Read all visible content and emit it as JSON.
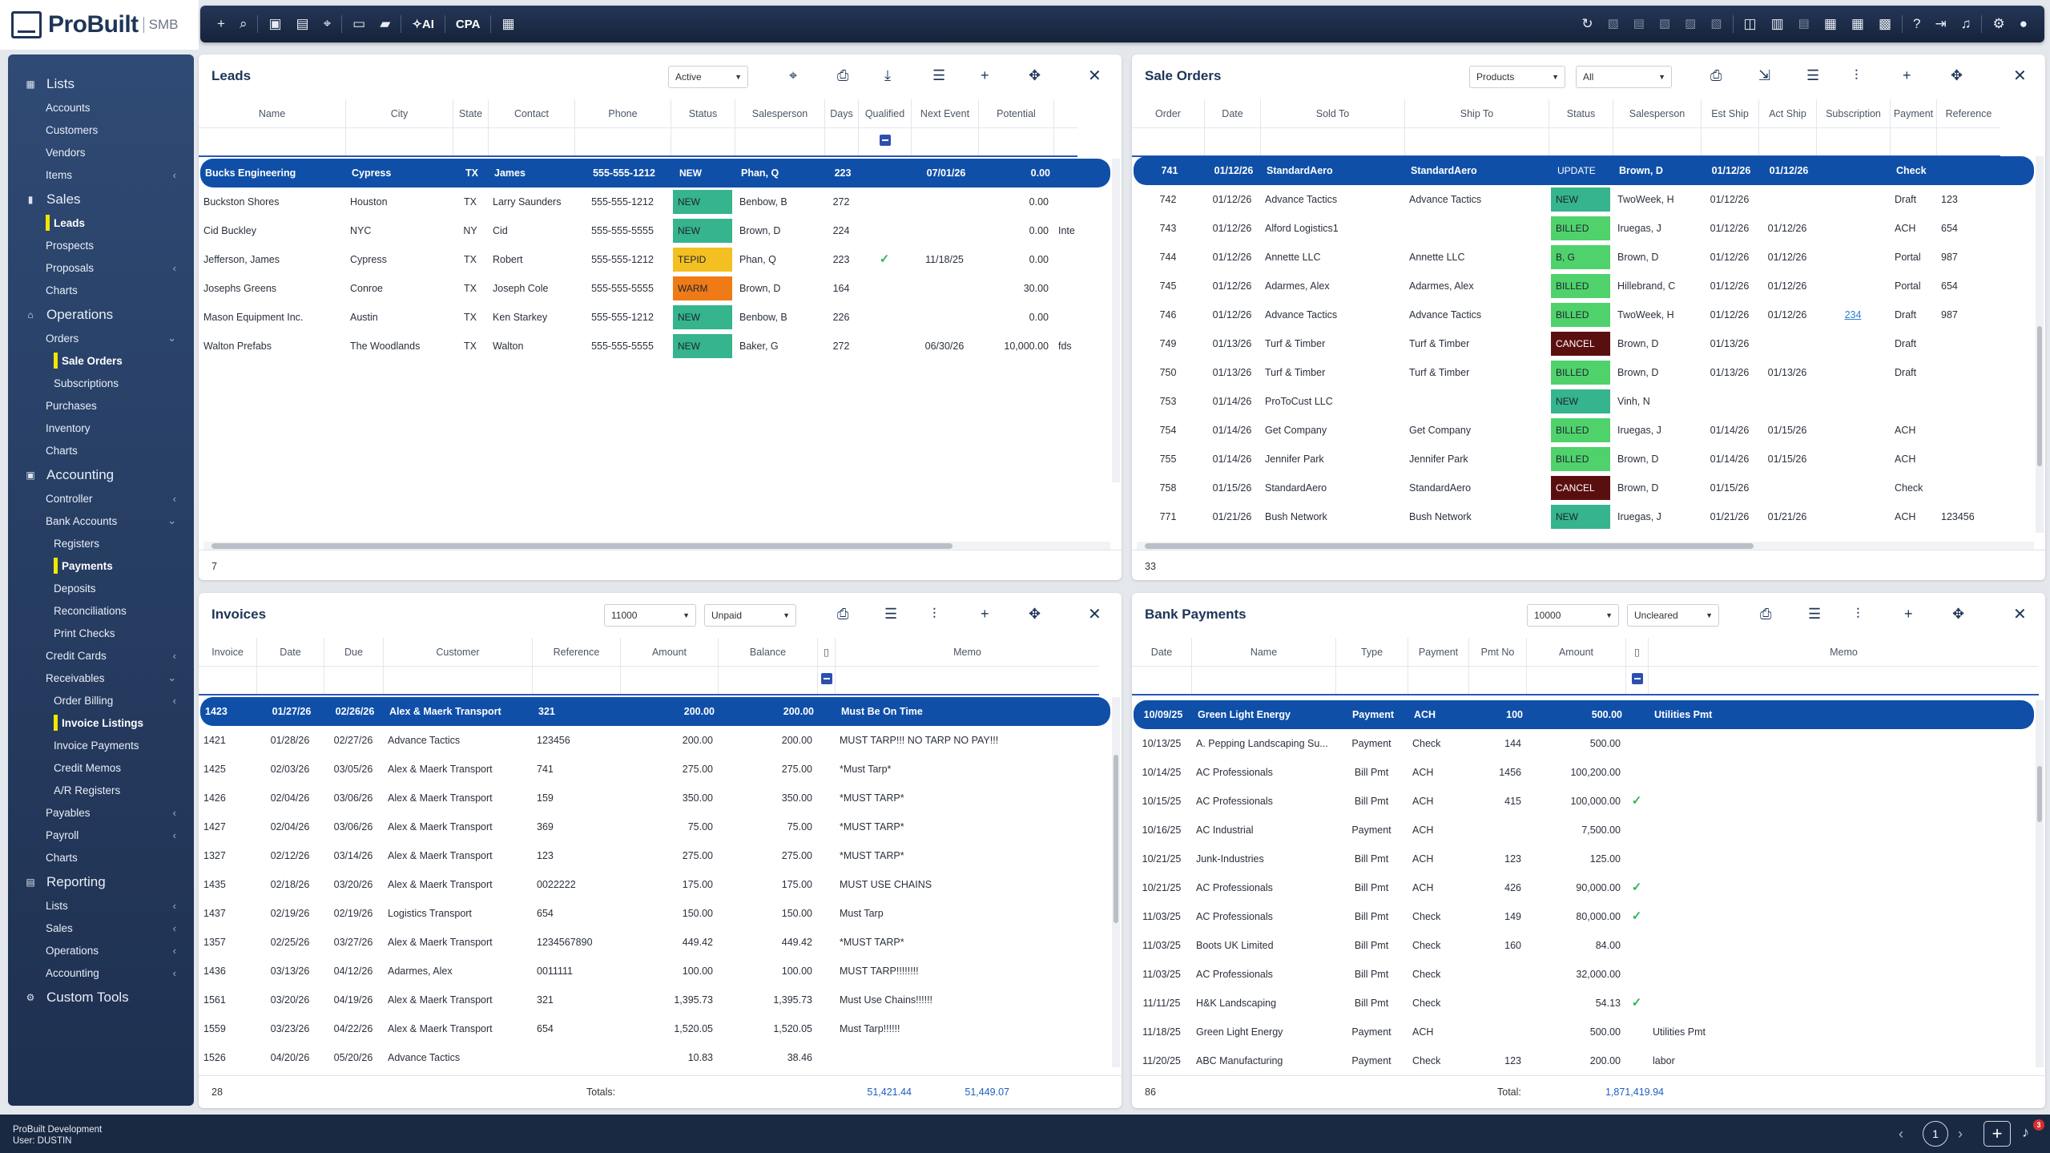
{
  "app": {
    "logo_text": "ProBuilt",
    "logo_suffix": "SMB",
    "footer_line1": "ProBuilt Development",
    "footer_line2": "User: DUSTIN",
    "page": "1",
    "notifications": "3"
  },
  "topbar": {
    "ai_label": "AI",
    "cpa_label": "CPA"
  },
  "sidebar": [
    {
      "label": "Lists",
      "level": "h",
      "icon": "▦",
      "chevron": ""
    },
    {
      "label": "Accounts",
      "level": "1",
      "chevron": ""
    },
    {
      "label": "Customers",
      "level": "1",
      "chevron": ""
    },
    {
      "label": "Vendors",
      "level": "1",
      "chevron": ""
    },
    {
      "label": "Items",
      "level": "1",
      "chevron": "‹"
    },
    {
      "label": "Sales",
      "level": "h",
      "icon": "▮",
      "chevron": ""
    },
    {
      "label": "Leads",
      "level": "1",
      "chevron": "",
      "active": true
    },
    {
      "label": "Prospects",
      "level": "1",
      "chevron": ""
    },
    {
      "label": "Proposals",
      "level": "1",
      "chevron": "‹"
    },
    {
      "label": "Charts",
      "level": "1",
      "chevron": ""
    },
    {
      "label": "Operations",
      "level": "h",
      "icon": "⌂",
      "chevron": ""
    },
    {
      "label": "Orders",
      "level": "1",
      "chevron": "⌄"
    },
    {
      "label": "Sale Orders",
      "level": "2",
      "chevron": "",
      "active": true
    },
    {
      "label": "Subscriptions",
      "level": "2",
      "chevron": ""
    },
    {
      "label": "Purchases",
      "level": "1",
      "chevron": ""
    },
    {
      "label": "Inventory",
      "level": "1",
      "chevron": ""
    },
    {
      "label": "Charts",
      "level": "1",
      "chevron": ""
    },
    {
      "label": "Accounting",
      "level": "h",
      "icon": "▣",
      "chevron": ""
    },
    {
      "label": "Controller",
      "level": "1",
      "chevron": "‹"
    },
    {
      "label": "Bank Accounts",
      "level": "1",
      "chevron": "⌄"
    },
    {
      "label": "Registers",
      "level": "2",
      "chevron": ""
    },
    {
      "label": "Payments",
      "level": "2",
      "chevron": "",
      "active": true
    },
    {
      "label": "Deposits",
      "level": "2",
      "chevron": ""
    },
    {
      "label": "Reconciliations",
      "level": "2",
      "chevron": ""
    },
    {
      "label": "Print Checks",
      "level": "2",
      "chevron": ""
    },
    {
      "label": "Credit Cards",
      "level": "1",
      "chevron": "‹"
    },
    {
      "label": "Receivables",
      "level": "1",
      "chevron": "⌄"
    },
    {
      "label": "Order Billing",
      "level": "2",
      "chevron": "‹"
    },
    {
      "label": "Invoice Listings",
      "level": "2",
      "chevron": "",
      "active": true
    },
    {
      "label": "Invoice Payments",
      "level": "2",
      "chevron": ""
    },
    {
      "label": "Credit Memos",
      "level": "2",
      "chevron": ""
    },
    {
      "label": "A/R Registers",
      "level": "2",
      "chevron": ""
    },
    {
      "label": "Payables",
      "level": "1",
      "chevron": "‹"
    },
    {
      "label": "Payroll",
      "level": "1",
      "chevron": "‹"
    },
    {
      "label": "Charts",
      "level": "1",
      "chevron": ""
    },
    {
      "label": "Reporting",
      "level": "h",
      "icon": "▤",
      "chevron": ""
    },
    {
      "label": "Lists",
      "level": "1",
      "chevron": "‹"
    },
    {
      "label": "Sales",
      "level": "1",
      "chevron": "‹"
    },
    {
      "label": "Operations",
      "level": "1",
      "chevron": "‹"
    },
    {
      "label": "Accounting",
      "level": "1",
      "chevron": "‹"
    },
    {
      "label": "Custom Tools",
      "level": "h",
      "icon": "⚙",
      "chevron": ""
    }
  ],
  "leads": {
    "title": "Leads",
    "filter": "Active",
    "count": "7",
    "columns": [
      "Name",
      "City",
      "State",
      "Contact",
      "Phone",
      "Status",
      "Salesperson",
      "Days",
      "Qualified",
      "Next Event",
      "Potential"
    ],
    "rows": [
      [
        "Bucks Engineering",
        "Cypress",
        "TX",
        "James",
        "555-555-1212",
        "NEW",
        "Phan, Q",
        "223",
        "",
        "07/01/26",
        "0.00",
        ""
      ],
      [
        "Buckston Shores",
        "Houston",
        "TX",
        "Larry Saunders",
        "555-555-1212",
        "NEW",
        "Benbow, B",
        "272",
        "",
        "",
        "0.00",
        ""
      ],
      [
        "Cid Buckley",
        "NYC",
        "NY",
        "Cid",
        "555-555-5555",
        "NEW",
        "Brown, D",
        "224",
        "",
        "",
        "0.00",
        "Inte"
      ],
      [
        "Jefferson, James",
        "Cypress",
        "TX",
        "Robert",
        "555-555-1212",
        "TEPID",
        "Phan, Q",
        "223",
        "✓",
        "11/18/25",
        "0.00",
        ""
      ],
      [
        "Josephs Greens",
        "Conroe",
        "TX",
        "Joseph Cole",
        "555-555-5555",
        "WARM",
        "Brown, D",
        "164",
        "",
        "",
        "30.00",
        ""
      ],
      [
        "Mason Equipment Inc.",
        "Austin",
        "TX",
        "Ken Starkey",
        "555-555-1212",
        "NEW",
        "Benbow, B",
        "226",
        "",
        "",
        "0.00",
        ""
      ],
      [
        "Walton Prefabs",
        "The Woodlands",
        "TX",
        "Walton",
        "555-555-5555",
        "NEW",
        "Baker, G",
        "272",
        "",
        "06/30/26",
        "10,000.00",
        "fds"
      ]
    ]
  },
  "sale_orders": {
    "title": "Sale Orders",
    "filter1": "Products",
    "filter2": "All",
    "count": "33",
    "columns": [
      "Order",
      "Date",
      "Sold To",
      "Ship To",
      "Status",
      "Salesperson",
      "Est Ship",
      "Act Ship",
      "Subscription",
      "Payment",
      "Reference"
    ],
    "rows": [
      [
        "741",
        "01/12/26",
        "StandardAero",
        "StandardAero",
        "UPDATE",
        "Brown, D",
        "01/12/26",
        "01/12/26",
        "",
        "Check",
        ""
      ],
      [
        "742",
        "01/12/26",
        "Advance Tactics",
        "Advance Tactics",
        "NEW",
        "TwoWeek, H",
        "01/12/26",
        "",
        "",
        "Draft",
        "123"
      ],
      [
        "743",
        "01/12/26",
        "Alford Logistics1",
        "",
        "BILLED",
        "Iruegas, J",
        "01/12/26",
        "01/12/26",
        "",
        "ACH",
        "654"
      ],
      [
        "744",
        "01/12/26",
        "Annette LLC",
        "Annette LLC",
        "B, G",
        "Brown, D",
        "01/12/26",
        "01/12/26",
        "",
        "Portal",
        "987"
      ],
      [
        "745",
        "01/12/26",
        "Adarmes, Alex",
        "Adarmes, Alex",
        "BILLED",
        "Hillebrand, C",
        "01/12/26",
        "01/12/26",
        "",
        "Portal",
        "654"
      ],
      [
        "746",
        "01/12/26",
        "Advance Tactics",
        "Advance Tactics",
        "BILLED",
        "TwoWeek, H",
        "01/12/26",
        "01/12/26",
        "234",
        "Draft",
        "987"
      ],
      [
        "749",
        "01/13/26",
        "Turf & Timber",
        "Turf & Timber",
        "CANCEL",
        "Brown, D",
        "01/13/26",
        "",
        "",
        "Draft",
        ""
      ],
      [
        "750",
        "01/13/26",
        "Turf & Timber",
        "Turf & Timber",
        "BILLED",
        "Brown, D",
        "01/13/26",
        "01/13/26",
        "",
        "Draft",
        ""
      ],
      [
        "753",
        "01/14/26",
        "ProToCust LLC",
        "",
        "NEW",
        "Vinh, N",
        "",
        "",
        "",
        "",
        ""
      ],
      [
        "754",
        "01/14/26",
        "Get Company",
        "Get Company",
        "BILLED",
        "Iruegas, J",
        "01/14/26",
        "01/15/26",
        "",
        "ACH",
        ""
      ],
      [
        "755",
        "01/14/26",
        "Jennifer Park",
        "Jennifer Park",
        "BILLED",
        "Brown, D",
        "01/14/26",
        "01/15/26",
        "",
        "ACH",
        ""
      ],
      [
        "758",
        "01/15/26",
        "StandardAero",
        "StandardAero",
        "CANCEL",
        "Brown, D",
        "01/15/26",
        "",
        "",
        "Check",
        ""
      ],
      [
        "771",
        "01/21/26",
        "Bush Network",
        "Bush Network",
        "NEW",
        "Iruegas, J",
        "01/21/26",
        "01/21/26",
        "",
        "ACH",
        "123456"
      ]
    ]
  },
  "invoices": {
    "title": "Invoices",
    "filter1": "11000",
    "filter2": "Unpaid",
    "count": "28",
    "totals_label": "Totals:",
    "total_amount": "51,421.44",
    "total_balance": "51,449.07",
    "columns": [
      "Invoice",
      "Date",
      "Due",
      "Customer",
      "Reference",
      "Amount",
      "Balance",
      "",
      "Memo"
    ],
    "rows": [
      [
        "1423",
        "01/27/26",
        "02/26/26",
        "Alex & Maerk Transport",
        "321",
        "200.00",
        "200.00",
        "Must Be On Time"
      ],
      [
        "1421",
        "01/28/26",
        "02/27/26",
        "Advance Tactics",
        "123456",
        "200.00",
        "200.00",
        "MUST TARP!!! NO TARP NO PAY!!!"
      ],
      [
        "1425",
        "02/03/26",
        "03/05/26",
        "Alex & Maerk Transport",
        "741",
        "275.00",
        "275.00",
        "*Must Tarp*"
      ],
      [
        "1426",
        "02/04/26",
        "03/06/26",
        "Alex & Maerk Transport",
        "159",
        "350.00",
        "350.00",
        "*MUST TARP*"
      ],
      [
        "1427",
        "02/04/26",
        "03/06/26",
        "Alex & Maerk Transport",
        "369",
        "75.00",
        "75.00",
        "*MUST TARP*"
      ],
      [
        "1327",
        "02/12/26",
        "03/14/26",
        "Alex & Maerk Transport",
        "123",
        "275.00",
        "275.00",
        "*MUST TARP*"
      ],
      [
        "1435",
        "02/18/26",
        "03/20/26",
        "Alex & Maerk Transport",
        "0022222",
        "175.00",
        "175.00",
        "MUST USE CHAINS"
      ],
      [
        "1437",
        "02/19/26",
        "02/19/26",
        "Logistics Transport",
        "654",
        "150.00",
        "150.00",
        "Must Tarp"
      ],
      [
        "1357",
        "02/25/26",
        "03/27/26",
        "Alex & Maerk Transport",
        "1234567890",
        "449.42",
        "449.42",
        "*MUST TARP*"
      ],
      [
        "1436",
        "03/13/26",
        "04/12/26",
        "Adarmes, Alex",
        "0011111",
        "100.00",
        "100.00",
        "MUST TARP!!!!!!!!"
      ],
      [
        "1561",
        "03/20/26",
        "04/19/26",
        "Alex & Maerk Transport",
        "321",
        "1,395.73",
        "1,395.73",
        "Must Use Chains!!!!!!"
      ],
      [
        "1559",
        "03/23/26",
        "04/22/26",
        "Alex & Maerk Transport",
        "654",
        "1,520.05",
        "1,520.05",
        "Must Tarp!!!!!!"
      ],
      [
        "1526",
        "04/20/26",
        "05/20/26",
        "Advance Tactics",
        "",
        "10.83",
        "38.46",
        ""
      ]
    ]
  },
  "bank_payments": {
    "title": "Bank Payments",
    "filter1": "10000",
    "filter2": "Uncleared",
    "count": "86",
    "totals_label": "Total:",
    "total_amount": "1,871,419.94",
    "columns": [
      "Date",
      "Name",
      "Type",
      "Payment",
      "Pmt No",
      "Amount",
      "",
      "Memo"
    ],
    "rows": [
      [
        "10/09/25",
        "Green Light Energy",
        "Payment",
        "ACH",
        "100",
        "500.00",
        "",
        "Utilities Pmt"
      ],
      [
        "10/13/25",
        "A. Pepping Landscaping Su...",
        "Payment",
        "Check",
        "144",
        "500.00",
        "",
        ""
      ],
      [
        "10/14/25",
        "AC Professionals",
        "Bill Pmt",
        "ACH",
        "1456",
        "100,200.00",
        "",
        ""
      ],
      [
        "10/15/25",
        "AC Professionals",
        "Bill Pmt",
        "ACH",
        "415",
        "100,000.00",
        "✓",
        ""
      ],
      [
        "10/16/25",
        "AC Industrial",
        "Payment",
        "ACH",
        "",
        "7,500.00",
        "",
        ""
      ],
      [
        "10/21/25",
        "Junk-Industries",
        "Bill Pmt",
        "ACH",
        "123",
        "125.00",
        "",
        ""
      ],
      [
        "10/21/25",
        "AC Professionals",
        "Bill Pmt",
        "ACH",
        "426",
        "90,000.00",
        "✓",
        ""
      ],
      [
        "11/03/25",
        "AC Professionals",
        "Bill Pmt",
        "Check",
        "149",
        "80,000.00",
        "✓",
        ""
      ],
      [
        "11/03/25",
        "Boots UK Limited",
        "Bill Pmt",
        "Check",
        "160",
        "84.00",
        "",
        ""
      ],
      [
        "11/03/25",
        "AC Professionals",
        "Bill Pmt",
        "Check",
        "",
        "32,000.00",
        "",
        ""
      ],
      [
        "11/11/25",
        "H&K Landscaping",
        "Bill Pmt",
        "Check",
        "",
        "54.13",
        "✓",
        ""
      ],
      [
        "11/18/25",
        "Green Light Energy",
        "Payment",
        "ACH",
        "",
        "500.00",
        "",
        "Utilities Pmt"
      ],
      [
        "11/20/25",
        "ABC Manufacturing",
        "Payment",
        "Check",
        "123",
        "200.00",
        "",
        "labor"
      ]
    ]
  },
  "colors": {
    "accent": "#0f4fa8",
    "new": "#35b48d",
    "tepid": "#f4c021",
    "warm": "#ef7b17",
    "billed": "#4fd26b",
    "cancel": "#5a0f0f",
    "nav": "#1e3050"
  }
}
